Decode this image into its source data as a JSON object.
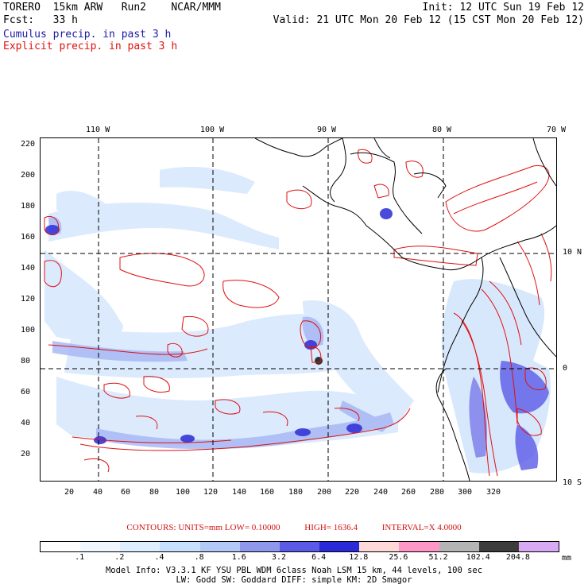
{
  "header": {
    "line1_left": "TORERO  15km ARW   Run2    NCAR/MMM",
    "line1_right": "Init: 12 UTC Sun 19 Feb 12",
    "line2_left": "Fcst:   33 h",
    "line2_right": "Valid: 21 UTC Mon 20 Feb 12 (15 CST Mon 20 Feb 12)",
    "line3": "Cumulus precip. in past 3 h",
    "line4": "Explicit precip. in past 3 h"
  },
  "colors": {
    "cumulus_label": "#1a1aa6",
    "explicit_label": "#e01010",
    "contour": "#e01010"
  },
  "map": {
    "lon_labels": [
      "110 W",
      "100 W",
      "90 W",
      "80 W",
      "70 W"
    ],
    "lat_labels": [
      "10 N",
      "0",
      "10 S"
    ],
    "y_ticks": [
      "220",
      "200",
      "180",
      "160",
      "140",
      "120",
      "100",
      "80",
      "60",
      "40",
      "20"
    ],
    "x_ticks": [
      "20",
      "40",
      "60",
      "80",
      "100",
      "120",
      "140",
      "160",
      "180",
      "200",
      "220",
      "240",
      "260",
      "280",
      "300",
      "320"
    ]
  },
  "contours": {
    "units": "CONTOURS:  UNITS=mm  LOW= 0.10000",
    "high": "HIGH=  1636.4",
    "interval": "INTERVAL=X  4.0000"
  },
  "scale": {
    "unit": "mm",
    "labels": [
      ".1",
      ".2",
      ".4",
      ".8",
      "1.6",
      "3.2",
      "6.4",
      "12.8",
      "25.6",
      "51.2",
      "102.4",
      "204.8"
    ],
    "colors": [
      "#ffffff",
      "#f0f7ff",
      "#ddeeff",
      "#c8e0ff",
      "#b4c8f8",
      "#9098ee",
      "#5a5ae6",
      "#2a2ad8",
      "#ffd8d8",
      "#ff96c8",
      "#b4b4b4",
      "#3c3c3c",
      "#d8aaf4"
    ]
  },
  "footer": {
    "line1": "Model Info: V3.3.1    KF      YSU PBL   WDM 6class  Noah LSM  15 km,    44 levels,   100 sec",
    "line2": "LW: Godd SW: Goddard DIFF: simple KM: 2D Smagor"
  }
}
